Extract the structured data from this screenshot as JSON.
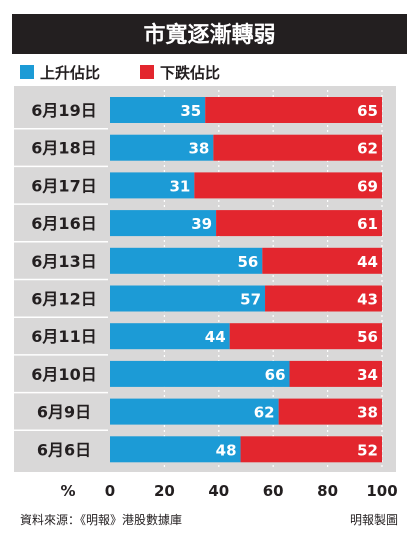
{
  "chart_data": {
    "type": "bar",
    "stacked": true,
    "orientation": "horizontal",
    "title": "市寬逐漸轉弱",
    "categories": [
      "6月19日",
      "6月18日",
      "6月17日",
      "6月16日",
      "6月13日",
      "6月12日",
      "6月11日",
      "6月10日",
      "6月9日",
      "6月6日"
    ],
    "series": [
      {
        "name": "上升佔比",
        "color": "#1c9bd6",
        "values": [
          35,
          38,
          31,
          39,
          56,
          57,
          44,
          66,
          62,
          48
        ]
      },
      {
        "name": "下跌佔比",
        "color": "#e3262e",
        "values": [
          65,
          62,
          69,
          61,
          44,
          43,
          56,
          34,
          38,
          52
        ]
      }
    ],
    "xlabel": "%",
    "xticks": [
      0,
      20,
      40,
      60,
      80,
      100
    ],
    "xlim": [
      0,
      100
    ],
    "legend_position": "top-left",
    "grid": true
  },
  "footer": {
    "source": "資料來源：《明報》港股數據庫",
    "credit": "明報製圖"
  },
  "colors": {
    "title_bg": "#231f20",
    "title_text": "#ffffff",
    "panel_bg": "#d9d8d8",
    "grid": "#ffffff",
    "label_text": "#231f20",
    "value_text": "#ffffff"
  }
}
